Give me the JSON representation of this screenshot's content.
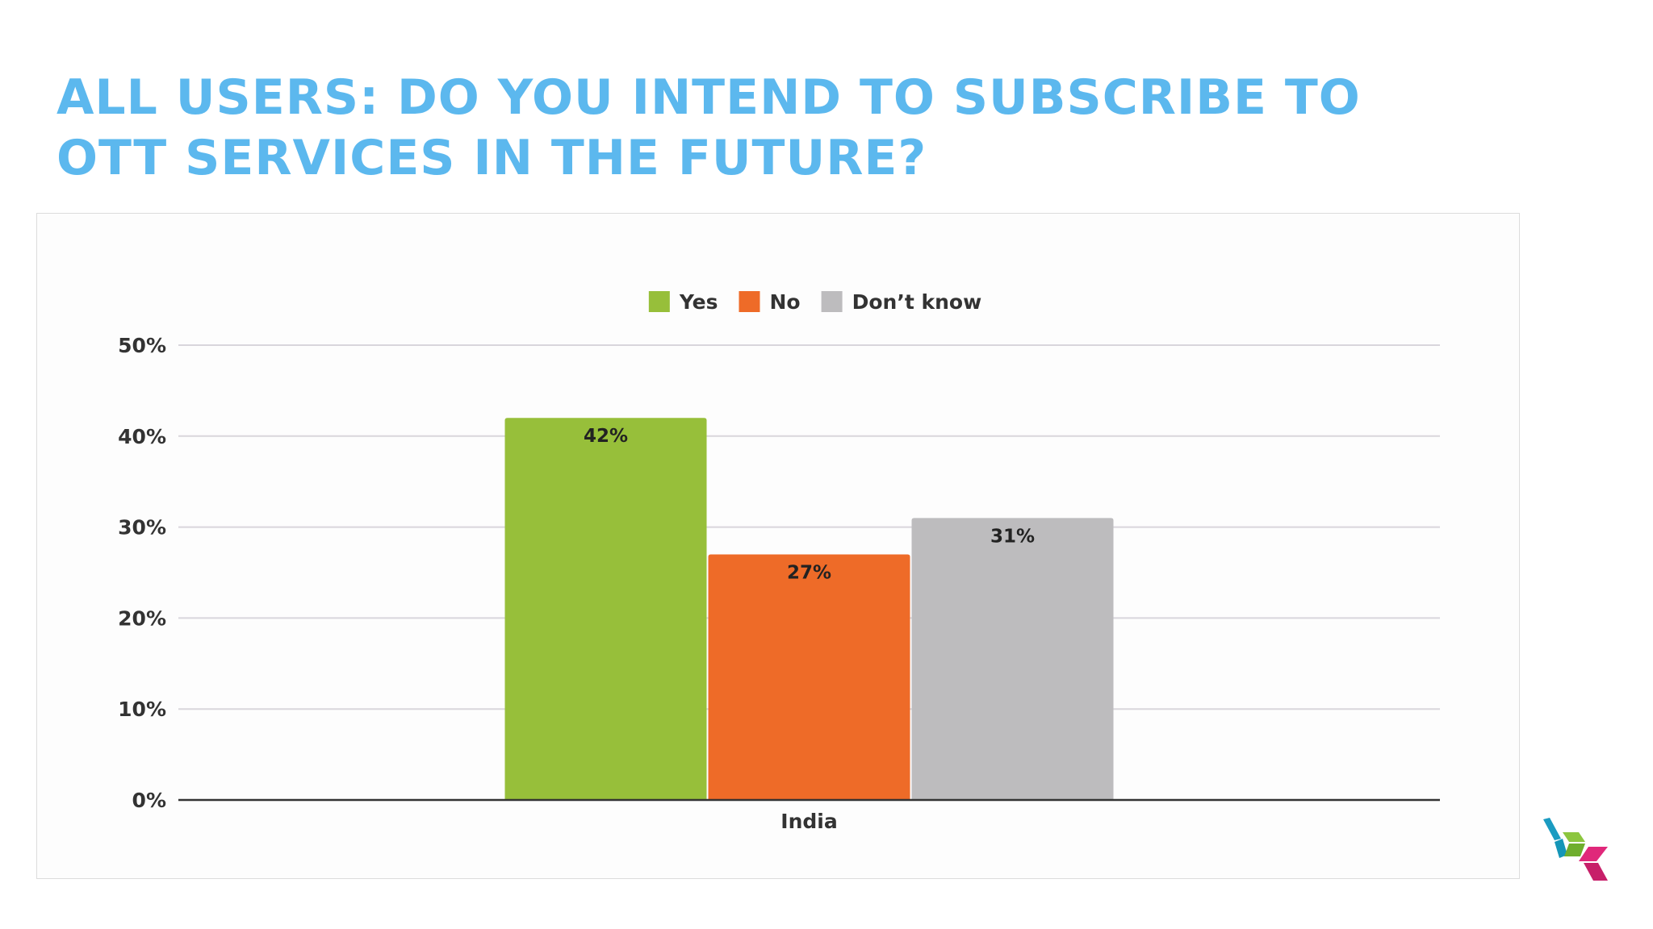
{
  "slide": {
    "title_line1": "ALL USERS: DO YOU INTEND TO SUBSCRIBE TO",
    "title_line2": "OTT SERVICES IN THE FUTURE?"
  },
  "chart_data": {
    "type": "bar",
    "title": "",
    "xlabel": "",
    "ylabel": "",
    "categories": [
      "India"
    ],
    "series": [
      {
        "name": "Yes",
        "values": [
          42
        ],
        "labels": [
          "42%"
        ],
        "color": "#97bf3a"
      },
      {
        "name": "No",
        "values": [
          27
        ],
        "labels": [
          "27%"
        ],
        "color": "#ee6b28"
      },
      {
        "name": "Don’t know",
        "values": [
          31
        ],
        "labels": [
          "31%"
        ],
        "color": "#bdbcbe"
      }
    ],
    "ylim": [
      0,
      50
    ],
    "yticks": [
      0,
      10,
      20,
      30,
      40,
      50
    ],
    "ytick_labels": [
      "0%",
      "10%",
      "20%",
      "30%",
      "40%",
      "50%"
    ],
    "grid": true,
    "legend_position": "top-center"
  },
  "logo": {
    "icon": "company-logo-icon",
    "colors": [
      "#1b9bc1",
      "#8cc63f",
      "#e0287a"
    ]
  }
}
